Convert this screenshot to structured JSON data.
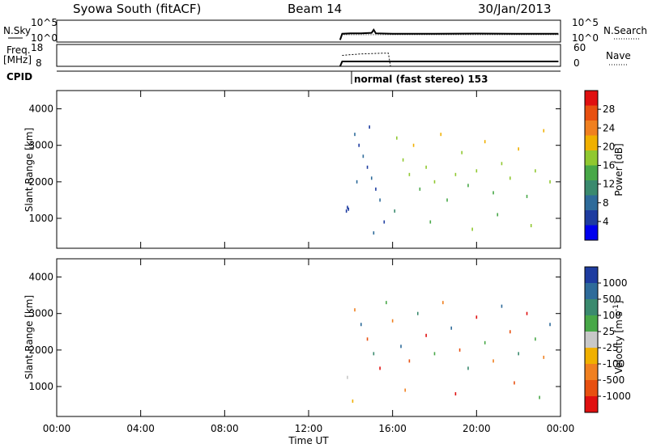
{
  "header": {
    "station": "Syowa South (fitACF)",
    "beam": "Beam 14",
    "date": "30/Jan/2013"
  },
  "noise_panel": {
    "left_label": "N.Sky",
    "right_label": "N.Search",
    "left_ticks": [
      "10^5",
      "10^0"
    ],
    "right_ticks": [
      "10^5",
      "10^0"
    ]
  },
  "freq_panel": {
    "left_label_1": "Freq.",
    "left_label_2": "[MHz]",
    "right_label": "Nave",
    "left_ticks": [
      "18",
      "8"
    ],
    "right_ticks": [
      "60",
      "0"
    ]
  },
  "cpid": {
    "label": "CPID",
    "mode_text": "normal (fast stereo) 153"
  },
  "time_axis": {
    "label": "Time UT",
    "ticks": [
      "00:00",
      "04:00",
      "08:00",
      "12:00",
      "16:00",
      "20:00",
      "00:00"
    ]
  },
  "colors": {
    "power_scale": [
      "#0000ee",
      "#1e3ca0",
      "#2e6b9a",
      "#3a8a6e",
      "#48a848",
      "#90c830",
      "#f0b000",
      "#f08020",
      "#e85010",
      "#e01010"
    ],
    "velocity_scale": [
      "#1e3ca0",
      "#2e6b9a",
      "#3a8a6e",
      "#48a848",
      "#c8c8c8",
      "#f0b000",
      "#f08020",
      "#e85010",
      "#e01010"
    ]
  },
  "chart_data": [
    {
      "type": "line",
      "title": "Syowa South (fitACF)",
      "panel": "noise",
      "series": [
        {
          "name": "N.Sky",
          "x_hours": [
            13.5,
            13.6,
            14,
            14.5,
            15,
            15.1,
            15.2,
            16,
            18,
            20,
            22,
            23.9
          ],
          "values": [
            0.5,
            1.9,
            2.0,
            2.0,
            2.1,
            2.8,
            2.0,
            1.9,
            1.9,
            1.95,
            1.9,
            1.9
          ]
        },
        {
          "name": "N.Search",
          "x_hours": [
            13.5,
            13.6,
            16,
            20,
            23.9
          ],
          "values": [
            0.5,
            1.7,
            1.7,
            1.7,
            1.7
          ]
        }
      ]
    },
    {
      "type": "line",
      "panel": "frequency",
      "series": [
        {
          "name": "Freq.",
          "unit": "MHz",
          "x_hours": [
            13.5,
            13.6,
            23.9
          ],
          "values": [
            8,
            10.2,
            10.2
          ]
        },
        {
          "name": "Nave",
          "x_hours": [
            13.6,
            14,
            14.5,
            15,
            15.5,
            15.8,
            15.9,
            23.9
          ],
          "values": [
            30,
            32,
            34,
            35,
            36,
            36,
            0,
            0
          ]
        }
      ]
    },
    {
      "type": "heatmap",
      "title": "Power",
      "xlabel": "Time UT",
      "ylabel": "Slant Range [km]",
      "colorbar_label": "Power [dB]",
      "colorbar_ticks": [
        "4",
        "8",
        "12",
        "16",
        "20",
        "24",
        "28"
      ],
      "xlim": [
        0,
        24
      ],
      "ylim": [
        180,
        4500
      ],
      "y_ticks": [
        1000,
        2000,
        3000,
        4000
      ],
      "points": [
        [
          13.8,
          1200,
          1
        ],
        [
          13.85,
          1300,
          1
        ],
        [
          13.9,
          1250,
          1
        ],
        [
          14.2,
          3300,
          2
        ],
        [
          14.4,
          3000,
          1
        ],
        [
          14.6,
          2700,
          2
        ],
        [
          14.8,
          2400,
          1
        ],
        [
          15.0,
          2100,
          2
        ],
        [
          15.2,
          1800,
          1
        ],
        [
          15.4,
          1500,
          2
        ],
        [
          15.6,
          900,
          1
        ],
        [
          14.3,
          2000,
          2
        ],
        [
          14.9,
          3500,
          1
        ],
        [
          15.1,
          600,
          2
        ],
        [
          16.2,
          3200,
          5
        ],
        [
          16.5,
          2600,
          5
        ],
        [
          16.8,
          2200,
          5
        ],
        [
          17.0,
          3000,
          6
        ],
        [
          17.3,
          1800,
          4
        ],
        [
          17.6,
          2400,
          5
        ],
        [
          18.0,
          2000,
          5
        ],
        [
          18.3,
          3300,
          6
        ],
        [
          18.6,
          1500,
          4
        ],
        [
          19.0,
          2200,
          5
        ],
        [
          19.3,
          2800,
          5
        ],
        [
          19.6,
          1900,
          4
        ],
        [
          20.0,
          2300,
          5
        ],
        [
          20.4,
          3100,
          6
        ],
        [
          20.8,
          1700,
          4
        ],
        [
          21.2,
          2500,
          5
        ],
        [
          21.6,
          2100,
          5
        ],
        [
          22.0,
          2900,
          6
        ],
        [
          22.4,
          1600,
          4
        ],
        [
          22.8,
          2300,
          5
        ],
        [
          23.2,
          3400,
          6
        ],
        [
          23.5,
          2000,
          5
        ],
        [
          16.1,
          1200,
          3
        ],
        [
          17.8,
          900,
          4
        ],
        [
          19.8,
          700,
          5
        ],
        [
          21.0,
          1100,
          4
        ],
        [
          22.6,
          800,
          5
        ]
      ]
    },
    {
      "type": "heatmap",
      "title": "Velocity",
      "xlabel": "Time UT",
      "ylabel": "Slant Range [km]",
      "colorbar_label": "Velocity [m s^-1]",
      "colorbar_ticks": [
        "1000",
        "500",
        "100",
        "25",
        "-25",
        "-100",
        "-500",
        "-1000"
      ],
      "xlim": [
        0,
        24
      ],
      "ylim": [
        180,
        4500
      ],
      "y_ticks": [
        1000,
        2000,
        3000,
        4000
      ],
      "points": [
        [
          13.85,
          1250,
          4
        ],
        [
          14.2,
          3100,
          6
        ],
        [
          14.5,
          2700,
          1
        ],
        [
          14.8,
          2300,
          7
        ],
        [
          15.1,
          1900,
          2
        ],
        [
          15.4,
          1500,
          8
        ],
        [
          15.7,
          3300,
          3
        ],
        [
          16.0,
          2800,
          6
        ],
        [
          16.4,
          2100,
          1
        ],
        [
          16.8,
          1700,
          7
        ],
        [
          17.2,
          3000,
          2
        ],
        [
          17.6,
          2400,
          8
        ],
        [
          18.0,
          1900,
          3
        ],
        [
          18.4,
          3300,
          6
        ],
        [
          18.8,
          2600,
          1
        ],
        [
          19.2,
          2000,
          7
        ],
        [
          19.6,
          1500,
          2
        ],
        [
          20.0,
          2900,
          8
        ],
        [
          20.4,
          2200,
          3
        ],
        [
          20.8,
          1700,
          6
        ],
        [
          21.2,
          3200,
          1
        ],
        [
          21.6,
          2500,
          7
        ],
        [
          22.0,
          1900,
          2
        ],
        [
          22.4,
          3000,
          8
        ],
        [
          22.8,
          2300,
          3
        ],
        [
          23.2,
          1800,
          6
        ],
        [
          23.5,
          2700,
          1
        ],
        [
          14.1,
          600,
          5
        ],
        [
          16.6,
          900,
          6
        ],
        [
          19.0,
          800,
          8
        ],
        [
          21.8,
          1100,
          7
        ],
        [
          23.0,
          700,
          3
        ]
      ]
    }
  ]
}
